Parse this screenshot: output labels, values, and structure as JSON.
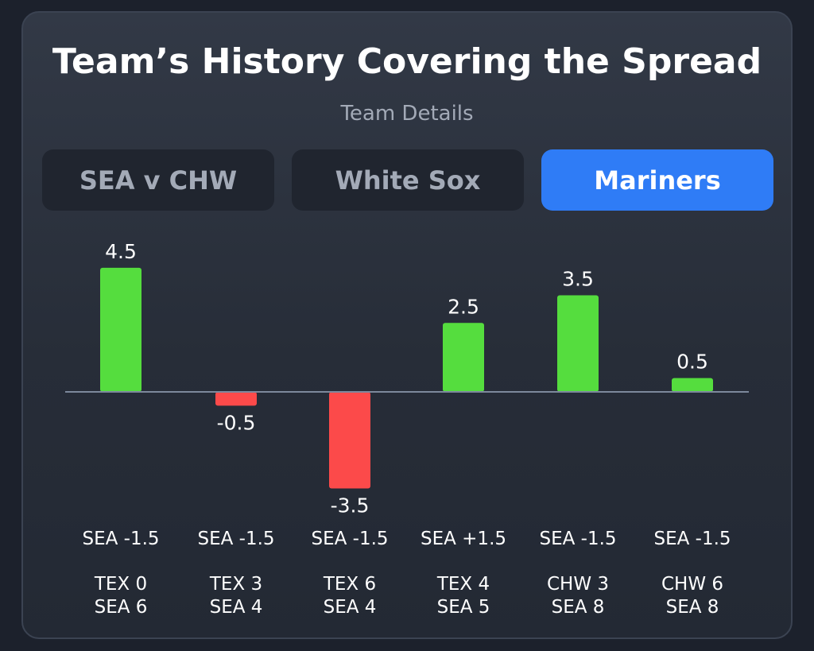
{
  "header": {
    "title": "Team’s History Covering the Spread",
    "subtitle": "Team Details"
  },
  "tabs": [
    {
      "label": "SEA v CHW",
      "active": false
    },
    {
      "label": "White Sox",
      "active": false
    },
    {
      "label": "Mariners",
      "active": true
    }
  ],
  "colors": {
    "positive": "#55dd3e",
    "negative": "#fc4a4a",
    "accent": "#2f7cf6"
  },
  "chart_data": {
    "type": "bar",
    "title": "Team’s History Covering the Spread",
    "xlabel": "",
    "ylabel": "",
    "ylim": [
      -3.5,
      4.5
    ],
    "values": [
      4.5,
      -0.5,
      -3.5,
      2.5,
      3.5,
      0.5
    ],
    "value_labels": [
      "4.5",
      "-0.5",
      "-3.5",
      "2.5",
      "3.5",
      "0.5"
    ],
    "spreads": [
      "SEA -1.5",
      "SEA -1.5",
      "SEA -1.5",
      "SEA +1.5",
      "SEA -1.5",
      "SEA -1.5"
    ],
    "scores": [
      [
        "TEX 0",
        "SEA 6"
      ],
      [
        "TEX 3",
        "SEA 4"
      ],
      [
        "TEX 6",
        "SEA 4"
      ],
      [
        "TEX 4",
        "SEA 5"
      ],
      [
        "CHW 3",
        "SEA 8"
      ],
      [
        "CHW 6",
        "SEA 8"
      ]
    ]
  }
}
